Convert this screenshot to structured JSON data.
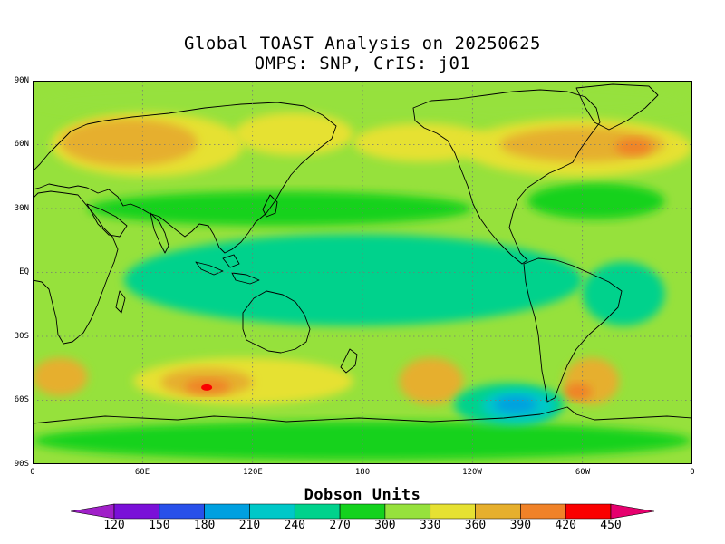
{
  "title": {
    "line1": "Global TOAST Analysis on 20250625",
    "line2": "OMPS: SNP, CrIS: j01"
  },
  "axes": {
    "lat_labels": [
      "90N",
      "60N",
      "30N",
      "EQ",
      "30S",
      "60S",
      "90S"
    ],
    "lon_labels": [
      "0",
      "60E",
      "120E",
      "180",
      "120W",
      "60W",
      "0"
    ]
  },
  "colorbar": {
    "title": "Dobson Units",
    "levels": [
      120,
      150,
      180,
      210,
      240,
      270,
      300,
      330,
      360,
      390,
      420,
      450
    ],
    "colors": [
      "#a020c8",
      "#7a10d8",
      "#2850ea",
      "#00a0e0",
      "#00c8c8",
      "#00d28c",
      "#14d21e",
      "#96e13c",
      "#e6e132",
      "#e6af2d",
      "#f08228",
      "#fa0000",
      "#e6006e"
    ]
  },
  "map": {
    "projection": "cylindrical equidistant",
    "unit": "Dobson Units",
    "grid": "dotted",
    "background_color": "#96e13c",
    "zones": [
      {
        "name": "tropical-band",
        "lon_range": [
          50,
          300
        ],
        "lat_range": [
          -25,
          18
        ],
        "level": 270,
        "color": "#00d28c"
      },
      {
        "name": "tropical-band-atlantic",
        "lon_range": [
          300,
          345
        ],
        "lat_range": [
          -25,
          5
        ],
        "level": 270,
        "color": "#00d28c"
      },
      {
        "name": "north-subtropics",
        "lon_range": [
          30,
          240
        ],
        "lat_range": [
          22,
          38
        ],
        "level": 300,
        "color": "#14d21e"
      },
      {
        "name": "southern-ocean-belt",
        "lon_range": [
          0,
          360
        ],
        "lat_range": [
          -88,
          -70
        ],
        "level": 300,
        "color": "#14d21e"
      },
      {
        "name": "north-atlantic-low",
        "lon_range": [
          270,
          345
        ],
        "lat_range": [
          25,
          42
        ],
        "level": 300,
        "color": "#14d21e"
      },
      {
        "name": "arctic-cap",
        "lon_range": [
          0,
          360
        ],
        "lat_range": [
          72,
          90
        ],
        "level": 330,
        "color": "#96e13c"
      },
      {
        "name": "eurasia-high",
        "lon_range": [
          10,
          115
        ],
        "lat_range": [
          45,
          75
        ],
        "level": 360,
        "color": "#e6e132"
      },
      {
        "name": "eurasia-core",
        "lon_range": [
          15,
          90
        ],
        "lat_range": [
          50,
          72
        ],
        "level": 390,
        "color": "#e6af2d"
      },
      {
        "name": "siberia-high",
        "lon_range": [
          110,
          175
        ],
        "lat_range": [
          55,
          75
        ],
        "level": 360,
        "color": "#e6e132"
      },
      {
        "name": "north-pacific-high",
        "lon_range": [
          175,
          250
        ],
        "lat_range": [
          52,
          70
        ],
        "level": 360,
        "color": "#e6e132"
      },
      {
        "name": "north-america-high",
        "lon_range": [
          235,
          360
        ],
        "lat_range": [
          45,
          72
        ],
        "level": 360,
        "color": "#e6e132"
      },
      {
        "name": "canada-core",
        "lon_range": [
          255,
          345
        ],
        "lat_range": [
          52,
          68
        ],
        "level": 390,
        "color": "#e6af2d"
      },
      {
        "name": "labrador-max",
        "lon_range": [
          318,
          338
        ],
        "lat_range": [
          55,
          63
        ],
        "level": 420,
        "color": "#f08228"
      },
      {
        "name": "south-indian-high",
        "lon_range": [
          55,
          175
        ],
        "lat_range": [
          -62,
          -40
        ],
        "level": 360,
        "color": "#e6e132"
      },
      {
        "name": "south-indian-core",
        "lon_range": [
          70,
          120
        ],
        "lat_range": [
          -58,
          -45
        ],
        "level": 390,
        "color": "#e6af2d"
      },
      {
        "name": "south-indian-max",
        "lon_range": [
          83,
          108
        ],
        "lat_range": [
          -57,
          -50
        ],
        "level": 420,
        "color": "#f08228"
      },
      {
        "name": "south-atlantic-high",
        "lon_range": [
          0,
          30
        ],
        "lat_range": [
          -58,
          -40
        ],
        "level": 390,
        "color": "#e6af2d"
      },
      {
        "name": "south-pacific-high",
        "lon_range": [
          200,
          235
        ],
        "lat_range": [
          -62,
          -40
        ],
        "level": 390,
        "color": "#e6af2d"
      },
      {
        "name": "patagonia-high",
        "lon_range": [
          290,
          320
        ],
        "lat_range": [
          -62,
          -40
        ],
        "level": 390,
        "color": "#e6af2d"
      },
      {
        "name": "patagonia-max",
        "lon_range": [
          290,
          305
        ],
        "lat_range": [
          -60,
          -52
        ],
        "level": 420,
        "color": "#f08228"
      },
      {
        "name": "south-pacific-low",
        "lon_range": [
          230,
          290
        ],
        "lat_range": [
          -72,
          -52
        ],
        "level": 270,
        "color": "#00d28c"
      },
      {
        "name": "south-pacific-min",
        "lon_range": [
          245,
          285
        ],
        "lat_range": [
          -70,
          -55
        ],
        "level": 240,
        "color": "#00c8c8"
      },
      {
        "name": "south-pacific-core-min",
        "lon_range": [
          252,
          275
        ],
        "lat_range": [
          -66,
          -58
        ],
        "level": 210,
        "color": "#00a0e0"
      }
    ],
    "maxima": [
      {
        "name": "south-indian-max",
        "lon": 95,
        "lat": -54,
        "level": 450,
        "color": "#fa0000"
      }
    ],
    "coast_color": "#000000"
  }
}
